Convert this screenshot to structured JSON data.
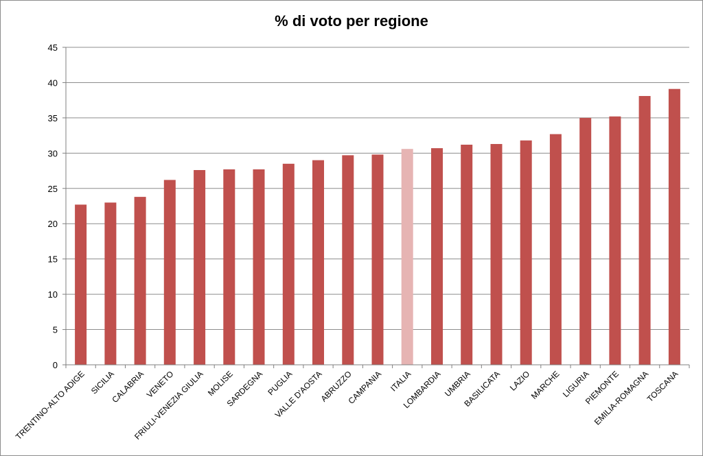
{
  "chart_data": {
    "type": "bar",
    "title": "% di voto per regione",
    "xlabel": "",
    "ylabel": "",
    "ylim": [
      0,
      45
    ],
    "yticks": [
      0,
      5,
      10,
      15,
      20,
      25,
      30,
      35,
      40,
      45
    ],
    "grid": "horizontal",
    "legend": "none",
    "categories": [
      "TRENTINO-ALTO ADIGE",
      "SICILIA",
      "CALABRIA",
      "VENETO",
      "FRIULI-VENEZIA GIULIA",
      "MOLISE",
      "SARDEGNA",
      "PUGLIA",
      "VALLE D'AOSTA",
      "ABRUZZO",
      "CAMPANIA",
      "ITALIA",
      "LOMBARDIA",
      "UMBRIA",
      "BASILICATA",
      "LAZIO",
      "MARCHE",
      "LIGURIA",
      "PIEMONTE",
      "EMILIA-ROMAGNA",
      "TOSCANA"
    ],
    "values": [
      22.7,
      23.0,
      23.8,
      26.2,
      27.6,
      27.7,
      27.7,
      28.5,
      29.0,
      29.7,
      29.8,
      30.6,
      30.7,
      31.2,
      31.3,
      31.8,
      32.7,
      35.0,
      35.2,
      38.1,
      39.1
    ],
    "colors": {
      "bar": "#c0504d",
      "highlight": "#e6b4b3",
      "gridline": "#8c8c8c",
      "axis": "#7f7f7f"
    },
    "highlight_category": "ITALIA"
  }
}
